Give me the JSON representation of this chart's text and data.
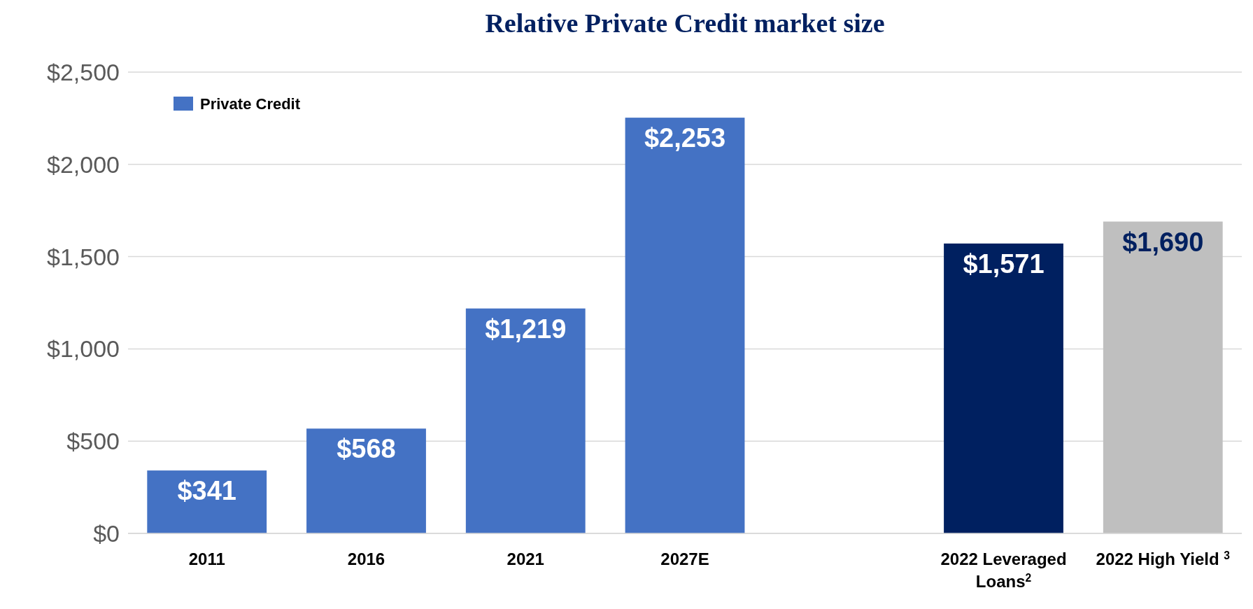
{
  "chart_data": {
    "type": "bar",
    "title": "Relative Private Credit market size",
    "categories": [
      "2011",
      "2016",
      "2021",
      "2027E",
      null,
      "2022 Leveraged Loans$^{2}$",
      "2022 High Yield $^{3}$"
    ],
    "series": [
      {
        "name": "Private Credit",
        "color": "#4472c4",
        "values": [
          341,
          568,
          1219,
          2253,
          null,
          null,
          null
        ],
        "value_labels": [
          "$341",
          "$568",
          "$1,219",
          "$2,253",
          null,
          null,
          null
        ]
      },
      {
        "color": "#002060",
        "values": [
          null,
          null,
          null,
          null,
          null,
          1571,
          null
        ],
        "value_labels": [
          null,
          null,
          null,
          null,
          null,
          "$1,571",
          null
        ]
      },
      {
        "color": "#bfbfbf",
        "values": [
          null,
          null,
          null,
          null,
          null,
          null,
          1690
        ],
        "value_labels": [
          null,
          null,
          null,
          null,
          null,
          null,
          "$1,690"
        ]
      }
    ],
    "ylim": [
      0,
      2500
    ],
    "yticks": [
      {
        "value": 0,
        "label": "$0"
      },
      {
        "value": 500,
        "label": "$500"
      },
      {
        "value": 1000,
        "label": "$1,000"
      },
      {
        "value": 1500,
        "label": "$1,500"
      },
      {
        "value": 2000,
        "label": "$2,000"
      },
      {
        "value": 2500,
        "label": "$2,500"
      }
    ],
    "grid": "y",
    "legend": "top left"
  }
}
